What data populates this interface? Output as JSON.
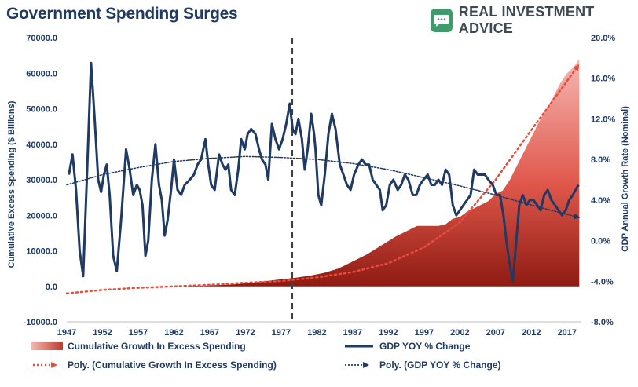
{
  "title": "Government Spending Surges",
  "brand": {
    "name": "REAL INVESTMENT ADVICE",
    "logo": "chat-bubble-icon",
    "color": "#3f9b6c"
  },
  "chart_data": {
    "type": "area+line",
    "xlabel": "",
    "ylabel_left": "Cumulative Excess Spending ($ Billions)",
    "ylabel_right": "GDP Annual Growth Rate (Nominal)",
    "x_ticks": [
      "1947",
      "1952",
      "1957",
      "1962",
      "1967",
      "1972",
      "1977",
      "1982",
      "1987",
      "1992",
      "1997",
      "2002",
      "2007",
      "2012",
      "2017"
    ],
    "y_left_ticks": [
      "70000.0",
      "60000.0",
      "50000.0",
      "40000.0",
      "30000.0",
      "20000.0",
      "10000.0",
      "0.0",
      "-10000.0"
    ],
    "y_right_ticks": [
      "20.0%",
      "16.0%",
      "12.0%",
      "8.0%",
      "4.0%",
      "0.0%",
      "-4.0%",
      "-8.0%"
    ],
    "ylim_left": [
      -10000,
      70000
    ],
    "ylim_right": [
      -8,
      20
    ],
    "xlim": [
      1947,
      2019
    ],
    "vline_x": 1978.5,
    "series": [
      {
        "name": "Cumulative Growth In Excess Spending",
        "kind": "area",
        "axis": "left",
        "color": "#c0392b",
        "points": [
          [
            1963,
            0
          ],
          [
            1970,
            500
          ],
          [
            1973,
            1000
          ],
          [
            1975,
            1500
          ],
          [
            1977,
            2000
          ],
          [
            1979,
            2400
          ],
          [
            1981,
            3000
          ],
          [
            1983,
            3800
          ],
          [
            1985,
            5000
          ],
          [
            1987,
            7000
          ],
          [
            1989,
            9000
          ],
          [
            1991,
            11500
          ],
          [
            1993,
            14000
          ],
          [
            1995,
            16000
          ],
          [
            1996,
            17000
          ],
          [
            1999,
            17000
          ],
          [
            2000,
            17500
          ],
          [
            2001,
            19000
          ],
          [
            2002,
            19500
          ],
          [
            2003,
            21000
          ],
          [
            2005,
            23000
          ],
          [
            2006,
            24000
          ],
          [
            2007,
            26000
          ],
          [
            2008,
            27000
          ],
          [
            2009,
            30000
          ],
          [
            2010,
            34000
          ],
          [
            2011,
            38000
          ],
          [
            2012,
            42000
          ],
          [
            2013,
            46000
          ],
          [
            2014,
            49500
          ],
          [
            2015,
            53000
          ],
          [
            2016,
            57000
          ],
          [
            2017,
            60000
          ],
          [
            2018,
            62000
          ],
          [
            2018.7,
            64000
          ]
        ]
      },
      {
        "name": "GDP YOY % Change",
        "kind": "line",
        "axis": "right",
        "color": "#1f3a63",
        "points": [
          [
            1947.3,
            6.5
          ],
          [
            1947.8,
            8.5
          ],
          [
            1948.3,
            5
          ],
          [
            1948.8,
            -1
          ],
          [
            1949.3,
            -3.5
          ],
          [
            1949.8,
            6
          ],
          [
            1950.4,
            17.5
          ],
          [
            1950.9,
            12
          ],
          [
            1951.4,
            6
          ],
          [
            1951.8,
            4.8
          ],
          [
            1952.2,
            6.5
          ],
          [
            1952.6,
            7.5
          ],
          [
            1953.0,
            4.5
          ],
          [
            1953.5,
            -1.5
          ],
          [
            1954.0,
            -3
          ],
          [
            1954.6,
            2
          ],
          [
            1955.3,
            9
          ],
          [
            1955.8,
            7
          ],
          [
            1956.3,
            4.5
          ],
          [
            1956.8,
            5.5
          ],
          [
            1957.2,
            5
          ],
          [
            1957.6,
            3.5
          ],
          [
            1958.0,
            -1.5
          ],
          [
            1958.4,
            0
          ],
          [
            1958.9,
            6
          ],
          [
            1959.4,
            9.5
          ],
          [
            1959.9,
            5.5
          ],
          [
            1960.3,
            4
          ],
          [
            1960.7,
            0.5
          ],
          [
            1961.1,
            2
          ],
          [
            1961.6,
            5
          ],
          [
            1962.0,
            8
          ],
          [
            1962.5,
            5
          ],
          [
            1963.0,
            4.5
          ],
          [
            1963.5,
            5.5
          ],
          [
            1964.2,
            6
          ],
          [
            1964.8,
            6.5
          ],
          [
            1965.3,
            7.5
          ],
          [
            1965.8,
            8
          ],
          [
            1966.4,
            10
          ],
          [
            1966.8,
            7.5
          ],
          [
            1967.2,
            5.5
          ],
          [
            1967.7,
            5
          ],
          [
            1968.3,
            8.5
          ],
          [
            1968.8,
            7.5
          ],
          [
            1969.2,
            7
          ],
          [
            1969.6,
            7.5
          ],
          [
            1970.0,
            5
          ],
          [
            1970.5,
            4.5
          ],
          [
            1971.0,
            7
          ],
          [
            1971.4,
            10
          ],
          [
            1971.9,
            9
          ],
          [
            1972.3,
            10.5
          ],
          [
            1972.8,
            11
          ],
          [
            1973.4,
            10.5
          ],
          [
            1973.9,
            9
          ],
          [
            1974.3,
            8
          ],
          [
            1974.8,
            7.5
          ],
          [
            1975.2,
            6
          ],
          [
            1975.7,
            11.5
          ],
          [
            1976.2,
            10
          ],
          [
            1976.7,
            9
          ],
          [
            1977.2,
            10
          ],
          [
            1977.7,
            11.5
          ],
          [
            1978.2,
            13.5
          ],
          [
            1978.6,
            11
          ],
          [
            1979.0,
            10.5
          ],
          [
            1979.4,
            12
          ],
          [
            1979.9,
            10
          ],
          [
            1980.3,
            7
          ],
          [
            1980.7,
            9
          ],
          [
            1981.2,
            12.5
          ],
          [
            1981.6,
            10.5
          ],
          [
            1981.8,
            9
          ],
          [
            1982.2,
            4.5
          ],
          [
            1982.6,
            3.5
          ],
          [
            1983.1,
            6.5
          ],
          [
            1983.6,
            10.5
          ],
          [
            1984.1,
            12.5
          ],
          [
            1984.6,
            11
          ],
          [
            1985.2,
            7.5
          ],
          [
            1985.7,
            6.5
          ],
          [
            1986.2,
            5.5
          ],
          [
            1986.7,
            5
          ],
          [
            1987.2,
            6.5
          ],
          [
            1987.8,
            7.5
          ],
          [
            1988.3,
            8
          ],
          [
            1988.8,
            7.5
          ],
          [
            1989.3,
            7.5
          ],
          [
            1989.8,
            6
          ],
          [
            1990.3,
            5.5
          ],
          [
            1990.8,
            5
          ],
          [
            1991.2,
            3
          ],
          [
            1991.7,
            3.5
          ],
          [
            1992.2,
            5.5
          ],
          [
            1992.7,
            6
          ],
          [
            1993.3,
            5
          ],
          [
            1993.8,
            5.5
          ],
          [
            1994.3,
            6.5
          ],
          [
            1994.8,
            6
          ],
          [
            1995.4,
            4.5
          ],
          [
            1995.9,
            4.5
          ],
          [
            1996.4,
            5.5
          ],
          [
            1996.9,
            6
          ],
          [
            1997.5,
            6.5
          ],
          [
            1998.0,
            5.5
          ],
          [
            1998.5,
            5.5
          ],
          [
            1999.0,
            6
          ],
          [
            1999.5,
            5.5
          ],
          [
            2000.0,
            7
          ],
          [
            2000.5,
            6.5
          ],
          [
            2001.0,
            3.5
          ],
          [
            2001.5,
            2.5
          ],
          [
            2002.0,
            3
          ],
          [
            2002.5,
            3.5
          ],
          [
            2003.0,
            4
          ],
          [
            2003.5,
            4.5
          ],
          [
            2004.0,
            7
          ],
          [
            2004.5,
            6.5
          ],
          [
            2005.0,
            6.5
          ],
          [
            2005.5,
            6.5
          ],
          [
            2006.0,
            6
          ],
          [
            2006.6,
            5.5
          ],
          [
            2007.1,
            4.5
          ],
          [
            2007.6,
            4.5
          ],
          [
            2008.1,
            2.5
          ],
          [
            2008.5,
            0
          ],
          [
            2009.0,
            -2.5
          ],
          [
            2009.4,
            -4
          ],
          [
            2009.9,
            0
          ],
          [
            2010.3,
            3.5
          ],
          [
            2010.8,
            4.5
          ],
          [
            2011.3,
            3.5
          ],
          [
            2011.8,
            4
          ],
          [
            2012.3,
            4
          ],
          [
            2012.8,
            3.5
          ],
          [
            2013.3,
            3
          ],
          [
            2013.8,
            4.5
          ],
          [
            2014.3,
            5
          ],
          [
            2014.8,
            4
          ],
          [
            2015.3,
            3.5
          ],
          [
            2015.8,
            3
          ],
          [
            2016.3,
            2.5
          ],
          [
            2016.8,
            3
          ],
          [
            2017.3,
            4
          ],
          [
            2017.8,
            4.5
          ],
          [
            2018.2,
            5
          ],
          [
            2018.6,
            5.5
          ]
        ]
      },
      {
        "name": "Poly. (Cumulative Growth In Excess Spending)",
        "kind": "trend",
        "axis": "left",
        "color": "#e74c3c",
        "points": [
          [
            1947,
            -2000
          ],
          [
            1952,
            -1000
          ],
          [
            1957,
            -400
          ],
          [
            1962,
            0
          ],
          [
            1967,
            400
          ],
          [
            1972,
            1000
          ],
          [
            1977,
            1500
          ],
          [
            1982,
            2500
          ],
          [
            1987,
            4000
          ],
          [
            1992,
            6500
          ],
          [
            1997,
            11000
          ],
          [
            2002,
            18000
          ],
          [
            2007,
            30000
          ],
          [
            2012,
            44000
          ],
          [
            2016,
            55000
          ],
          [
            2018.5,
            62000
          ]
        ]
      },
      {
        "name": "Poly. (GDP YOY % Change)",
        "kind": "trend",
        "axis": "right",
        "color": "#1f3a63",
        "points": [
          [
            1947,
            5.5
          ],
          [
            1952,
            6.5
          ],
          [
            1957,
            7.2
          ],
          [
            1962,
            7.8
          ],
          [
            1967,
            8.1
          ],
          [
            1972,
            8.3
          ],
          [
            1977,
            8.2
          ],
          [
            1982,
            8.0
          ],
          [
            1987,
            7.6
          ],
          [
            1992,
            7.0
          ],
          [
            1997,
            6.2
          ],
          [
            2002,
            5.4
          ],
          [
            2007,
            4.5
          ],
          [
            2012,
            3.5
          ],
          [
            2018.5,
            2.3
          ]
        ]
      }
    ]
  },
  "legend": [
    {
      "label": "Cumulative Growth In Excess Spending",
      "kind": "area"
    },
    {
      "label": "GDP YOY % Change",
      "kind": "line"
    },
    {
      "label": "Poly. (Cumulative Growth In Excess Spending)",
      "kind": "trend-red"
    },
    {
      "label": "Poly. (GDP YOY % Change)",
      "kind": "trend-blue"
    }
  ]
}
